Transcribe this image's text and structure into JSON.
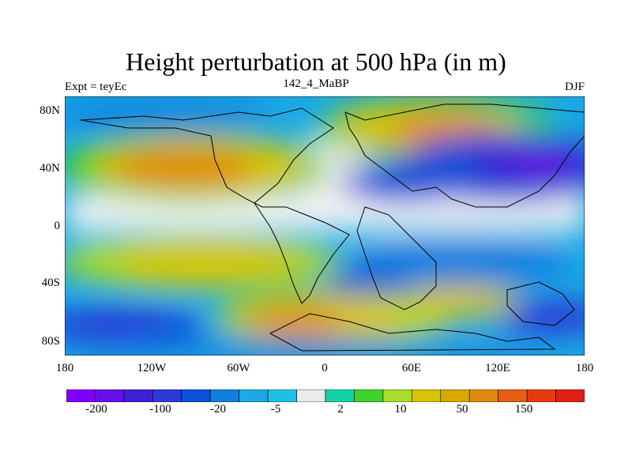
{
  "title": "Height perturbation at 500 hPa (in m)",
  "subtitle_left": "Expt = teyEc",
  "subtitle_center": "142_4_MaBP",
  "subtitle_right": "DJF",
  "y_ticks": [
    "80N",
    "40N",
    "0",
    "40S",
    "80S"
  ],
  "x_ticks": [
    "180",
    "120W",
    "60W",
    "0",
    "60E",
    "120E",
    "180"
  ],
  "legend": {
    "colors": [
      "#8000ff",
      "#6a0ee8",
      "#3c1fd6",
      "#2b3ad6",
      "#0a50d8",
      "#1080e0",
      "#1aa8e6",
      "#1cc0e8",
      "#eaeaea",
      "#15d2a6",
      "#3fd22a",
      "#a8dc2a",
      "#d8c400",
      "#d6a800",
      "#e08a10",
      "#e85c14",
      "#e63a10",
      "#e02010"
    ],
    "labels": [
      "-200",
      "-100",
      "-20",
      "-5",
      "2",
      "10",
      "50",
      "150"
    ]
  },
  "chart_data": {
    "type": "heatmap",
    "title": "Height perturbation at 500 hPa (in m)",
    "x_extent": [
      -180,
      180
    ],
    "y_extent": [
      -90,
      90
    ],
    "contour_levels": [
      -200,
      -150,
      -100,
      -50,
      -20,
      -10,
      -5,
      -2,
      2,
      5,
      10,
      20,
      50,
      100,
      150,
      200
    ],
    "anomaly_centers": [
      {
        "lon": -110,
        "lat": 40,
        "value": 70
      },
      {
        "lon": 60,
        "lat": 65,
        "value": 80
      },
      {
        "lon": 140,
        "lat": 45,
        "value": -180
      },
      {
        "lon": 60,
        "lat": 30,
        "value": -60
      },
      {
        "lon": -20,
        "lat": -70,
        "value": 90
      },
      {
        "lon": 40,
        "lat": -60,
        "value": 40
      },
      {
        "lon": -140,
        "lat": -65,
        "value": -120
      },
      {
        "lon": 160,
        "lat": -60,
        "value": -90
      },
      {
        "lon": -100,
        "lat": -30,
        "value": 30
      },
      {
        "lon": 80,
        "lat": -25,
        "value": -30
      },
      {
        "lon": -130,
        "lat": 72,
        "value": -40
      }
    ]
  }
}
